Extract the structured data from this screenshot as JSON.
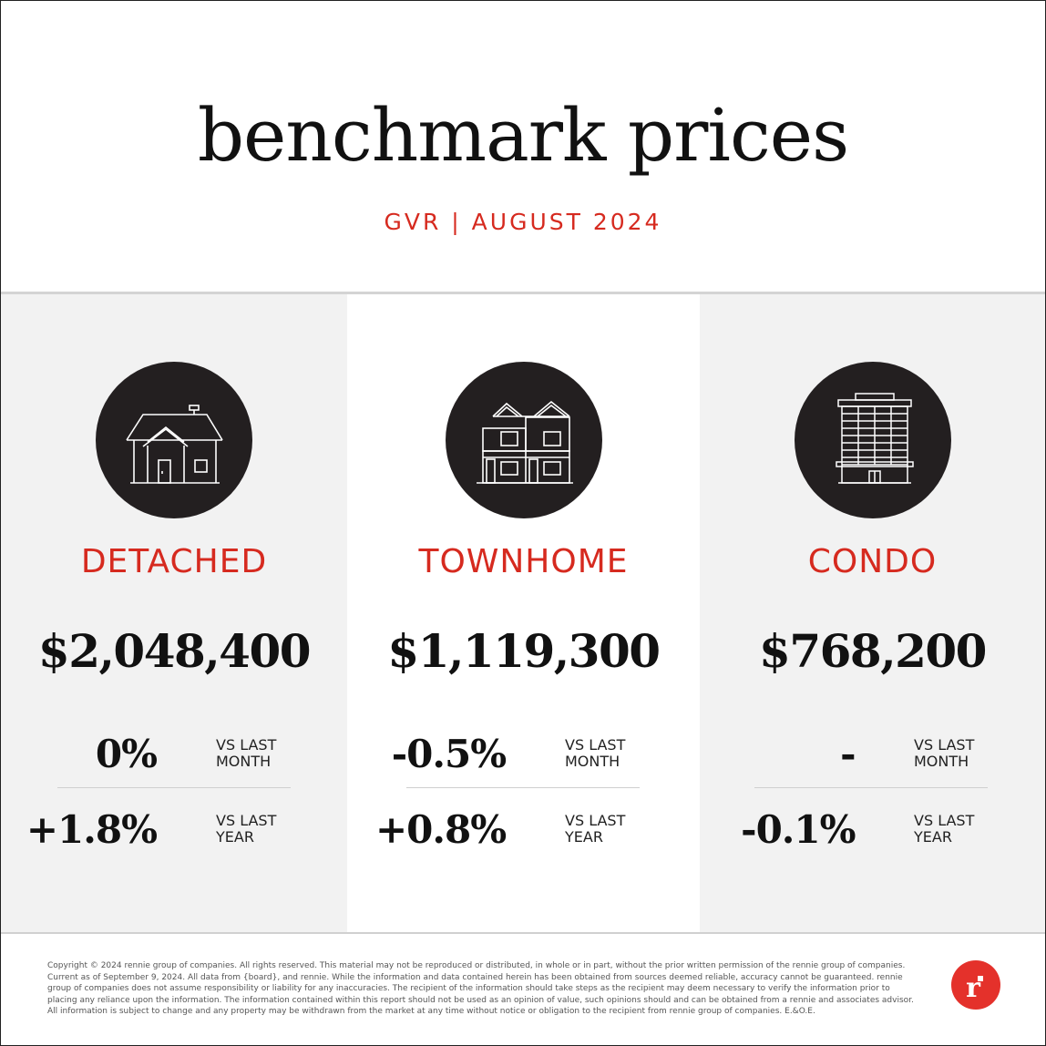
{
  "header": {
    "title": "benchmark prices",
    "subtitle": "GVR | AUGUST 2024"
  },
  "colors": {
    "accent": "#d62a1f",
    "icon_circle": "#231f20",
    "panel_gray": "#f2f2f2",
    "logo": "#e4312b"
  },
  "categories": [
    {
      "icon": "detached-house-icon",
      "label": "DETACHED",
      "price": "$2,048,400",
      "month_change": "0%",
      "month_label": "VS LAST MONTH",
      "year_change": "+1.8%",
      "year_label": "VS LAST YEAR"
    },
    {
      "icon": "townhome-icon",
      "label": "TOWNHOME",
      "price": "$1,119,300",
      "month_change": "-0.5%",
      "month_label": "VS LAST MONTH",
      "year_change": "+0.8%",
      "year_label": "VS LAST YEAR"
    },
    {
      "icon": "condo-building-icon",
      "label": "CONDO",
      "price": "$768,200",
      "month_change": "-",
      "month_label": "VS LAST MONTH",
      "year_change": "-0.1%",
      "year_label": "VS LAST YEAR"
    }
  ],
  "footer": {
    "disclaimer": "Copyright © 2024 rennie group of companies. All rights reserved. This material may not be reproduced or distributed, in whole or in part, without the prior written permission of the rennie group of companies. Current as of September 9, 2024. All data from {board}, and rennie. While the information and data contained herein has been obtained from sources deemed reliable, accuracy cannot be guaranteed. rennie group of companies does not assume responsibility or liability for any inaccuracies. The recipient of the information should take steps as the recipient may deem necessary to verify the information prior to placing any reliance upon the information. The information contained within this report should not be used as an opinion of value, such opinions should and can be obtained from a rennie and associates advisor. All information is subject to change and any property may be withdrawn from the market at any time without notice or obligation to the recipient from rennie group of companies. E.&O.E.",
    "logo_letter": "r",
    "logo_icon": "rennie-logo-icon"
  }
}
